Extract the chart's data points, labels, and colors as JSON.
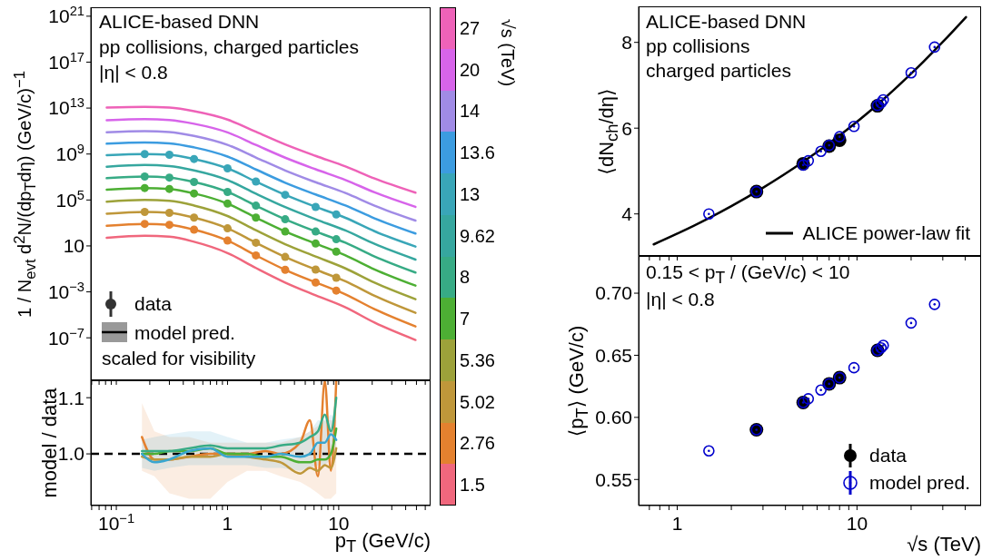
{
  "chart_data": [
    {
      "type": "line",
      "x": [
        0.082,
        0.18,
        0.3,
        0.5,
        1,
        1.8,
        3.3,
        6.2,
        11.5,
        21,
        49
      ],
      "log": "xy",
      "marker": "none",
      "xlim": [
        0.059,
        67
      ],
      "ylim": [
        2e-11,
        6e+21
      ],
      "xticks": [
        0.06,
        0.07,
        0.08,
        0.09,
        0.1,
        0.2,
        0.3,
        0.4,
        0.5,
        0.6,
        0.7,
        0.8,
        0.9,
        1,
        2,
        3,
        4,
        5,
        6,
        7,
        8,
        9,
        10,
        20,
        30,
        40,
        50,
        60
      ],
      "yticks": [
        {
          "value": 1e-07,
          "label": "10$^{−7}$"
        },
        {
          "value": 0.001,
          "label": "10$^{−3}$"
        },
        10,
        {
          "value": 100000.0,
          "label": "10$^{5}$"
        },
        {
          "value": 1000000000.0,
          "label": "10$^{9}$"
        },
        {
          "value": 10000000000000.0,
          "label": "10$^{13}$"
        },
        {
          "value": 1e+17,
          "label": "10$^{17}$"
        },
        {
          "value": 1e+21,
          "label": "10$^{21}$"
        }
      ],
      "tick_labels": "y",
      "ylabel": "1 / N$_{evt}$ d$^{2}$N/(dp$_{T}$dη) (GeV/c)$^{−1}$",
      "annotations": [
        "ALICE-based DNN",
        "pp collisions, charged particles",
        "|η| < 0.8",
        "data",
        "model pred.",
        "scaled for visibility"
      ],
      "legend": "right",
      "legend_title": "√s (TeV)",
      "series": [
        {
          "name": "1.5",
          "color": "#f0677d",
          "values": [
            50,
            76,
            63,
            23,
            2.4,
            0.12,
            0.0065,
            0.0005,
            4.5e-05,
            2.1e-06,
            6.5e-08
          ]
        },
        {
          "name": "2.76",
          "color": "#e4812f",
          "values": [
            560,
            830,
            690,
            260,
            29,
            1.5,
            0.083,
            0.0066,
            0.0006,
            3.1e-05,
            9.8e-07
          ]
        },
        {
          "name": "5.02",
          "color": "#bf973a",
          "values": [
            6300,
            9100,
            7600,
            2900,
            340,
            19,
            1.1,
            0.087,
            0.0083,
            0.00045,
            1.5e-05
          ]
        },
        {
          "name": "5.36",
          "color": "#9da23a",
          "values": [
            71000,
            100000,
            83000,
            33000,
            4000,
            230,
            14,
            1.2,
            0.11,
            0.0063,
            0.00023
          ]
        },
        {
          "name": "7",
          "color": "#4daf34",
          "values": [
            790000,
            1100000,
            910000,
            370000,
            48000,
            2900,
            180,
            16,
            1.5,
            0.091,
            0.0035
          ]
        },
        {
          "name": "8",
          "color": "#37ab85",
          "values": [
            7900000.0,
            11000000.0,
            8900000.0,
            3700000.0,
            500000.0,
            32000.0,
            2100,
            180,
            19,
            1.2,
            0.048
          ]
        },
        {
          "name": "9.62",
          "color": "#36a79f",
          "values": [
            79000000.0,
            110000000.0,
            89000000.0,
            37000000.0,
            5400000.0,
            350000.0,
            24000.0,
            2100,
            220,
            15,
            0.65
          ]
        },
        {
          "name": "13",
          "color": "#39a6b8",
          "values": [
            790000000.0,
            1000000000.0,
            870000000.0,
            370000000.0,
            56000000.0,
            4000000.0,
            280000.0,
            25000.0,
            2800,
            190,
            8.9
          ]
        },
        {
          "name": "13.6",
          "color": "#3c9ce0",
          "values": [
            7900000000.0,
            10000000000.0,
            8500000000.0,
            3800000000.0,
            600000000.0,
            45000000.0,
            3200000.0,
            300000.0,
            33000.0,
            2500,
            120
          ]
        },
        {
          "name": "14",
          "color": "#a08be6",
          "values": [
            79000000000.0,
            100000000000.0,
            83000000000.0,
            38000000000.0,
            6300000000.0,
            500000000.0,
            37000000.0,
            3500000.0,
            400000.0,
            32000.0,
            1600
          ]
        },
        {
          "name": "20",
          "color": "#d764ea",
          "values": [
            890000000000.0,
            1100000000000.0,
            910000000000.0,
            430000000000.0,
            76000000000.0,
            6200000000.0,
            480000000.0,
            47000000.0,
            5500000.0,
            460000.0,
            25000.0
          ]
        },
        {
          "name": "27",
          "color": "#ee62b8",
          "values": [
            11000000000000.0,
            13000000000000.0,
            11000000000000.0,
            5400000000000.0,
            1000000000000.0,
            87000000000.0,
            6900000000.0,
            690000000.0,
            83000000.0,
            7400000.0,
            430000.0
          ]
        },
        {
          "type": "scatter",
          "marker": "circle",
          "color": "#e4812f",
          "x": [
            0.18,
            0.3,
            0.5,
            1,
            1.8,
            3.3,
            6.2,
            9.5
          ],
          "values": [
            830,
            690,
            260,
            29,
            1.5,
            0.083,
            0.0066,
            0.0013
          ]
        },
        {
          "type": "scatter",
          "marker": "circle",
          "color": "#bf973a",
          "x": [
            0.18,
            0.3,
            0.5,
            1,
            1.8,
            3.3,
            6.2,
            9.5
          ],
          "values": [
            9100,
            7600,
            2900,
            340,
            19,
            1.1,
            0.087,
            0.017
          ]
        },
        {
          "type": "scatter",
          "marker": "circle",
          "color": "#4daf34",
          "x": [
            0.18,
            0.3,
            0.5,
            1,
            1.8,
            3.3,
            6.2,
            9.5
          ],
          "values": [
            1100000,
            910000,
            370000,
            48000,
            2900,
            180,
            16,
            3.2
          ]
        },
        {
          "type": "scatter",
          "marker": "circle",
          "color": "#37ab85",
          "x": [
            0.18,
            0.3,
            0.5,
            1,
            1.8,
            3.3,
            6.2,
            9.5
          ],
          "values": [
            11000000.0,
            8900000.0,
            3700000.0,
            500000.0,
            32000.0,
            2100,
            180,
            38
          ]
        },
        {
          "type": "scatter",
          "marker": "circle",
          "color": "#39a6b8",
          "x": [
            0.18,
            0.3,
            0.5,
            1,
            1.8,
            3.3,
            6.2,
            9.5
          ],
          "values": [
            1000000000.0,
            870000000.0,
            370000000.0,
            56000000.0,
            4000000.0,
            280000.0,
            25000.0,
            5500
          ]
        }
      ]
    },
    {
      "type": "line",
      "x": [
        0.17,
        0.22,
        0.3,
        0.45,
        0.7,
        1,
        1.5,
        2.2,
        3,
        4.5,
        5.5,
        6.5,
        7.5,
        8.5,
        9.5
      ],
      "log": "x",
      "xlim": [
        0.059,
        67
      ],
      "ylim": [
        0.908,
        1.131
      ],
      "xticks": [
        {
          "value": 0.06,
          "label": null
        },
        {
          "value": 0.07,
          "label": null
        },
        {
          "value": 0.08,
          "label": null
        },
        {
          "value": 0.09,
          "label": null
        },
        {
          "value": 0.1,
          "label": "10$^{−1}$"
        },
        {
          "value": 0.2,
          "label": null
        },
        {
          "value": 0.3,
          "label": null
        },
        {
          "value": 0.4,
          "label": null
        },
        {
          "value": 0.5,
          "label": null
        },
        {
          "value": 0.6,
          "label": null
        },
        {
          "value": 0.7,
          "label": null
        },
        {
          "value": 0.8,
          "label": null
        },
        {
          "value": 0.9,
          "label": null
        },
        1,
        {
          "value": 2,
          "label": null
        },
        {
          "value": 3,
          "label": null
        },
        {
          "value": 4,
          "label": null
        },
        {
          "value": 5,
          "label": null
        },
        {
          "value": 6,
          "label": null
        },
        {
          "value": 7,
          "label": null
        },
        {
          "value": 8,
          "label": null
        },
        {
          "value": 9,
          "label": null
        },
        10,
        {
          "value": 20,
          "label": null
        },
        {
          "value": 30,
          "label": null
        },
        {
          "value": 40,
          "label": null
        },
        {
          "value": 50,
          "label": null
        },
        {
          "value": 60,
          "label": null
        }
      ],
      "yticks": [
        {
          "value": 1,
          "label": "1.0"
        },
        1.1
      ],
      "xlabel": "p$_{T}$ (GeV/c)",
      "ylabel": "model / data",
      "ref_lines": [
        {
          "axis": "y",
          "value": 1,
          "color": "#000000",
          "line_style": "dashed"
        }
      ],
      "series": [
        {
          "color": "#e4812f",
          "values": [
            1.03,
            0.99,
            0.99,
            0.995,
            1.0,
            1.0,
            1.0,
            1.005,
            1.0,
            1.02,
            1.06,
            0.96,
            1.13,
            0.97,
            1.13
          ],
          "lower": [
            0.97,
            0.96,
            0.93,
            0.92,
            0.92,
            0.95,
            0.97,
            0.97,
            0.96,
            0.95,
            0.94,
            0.93,
            0.92,
            0.92,
            0.93
          ],
          "upper": [
            1.09,
            1.04,
            1.03,
            1.03,
            1.02,
            1.02,
            1.02,
            1.02,
            1.02,
            1.03,
            1.04,
            1.05,
            1.06,
            1.06,
            1.06
          ]
        },
        {
          "color": "#bf973a",
          "values": [
            0.995,
            0.99,
            0.99,
            0.995,
            0.995,
            1.0,
            0.995,
            0.99,
            0.985,
            0.965,
            0.975,
            0.97,
            0.98,
            0.975,
            1.01
          ]
        },
        {
          "color": "#4daf34",
          "values": [
            1.0,
            1.0,
            1.005,
            1.005,
            1.01,
            1.0,
            1.0,
            0.995,
            0.995,
            0.985,
            0.985,
            0.99,
            0.99,
            1.0,
            1.045
          ]
        },
        {
          "color": "#37ab85",
          "values": [
            1.005,
            1.005,
            1.005,
            1.01,
            1.015,
            1.01,
            1.01,
            1.01,
            1.015,
            1.02,
            1.03,
            1.04,
            1.07,
            1.04,
            1.1
          ]
        },
        {
          "color": "#39a6d0",
          "values": [
            1.0,
            0.985,
            0.99,
            1.005,
            1.01,
            0.995,
            0.995,
            0.995,
            1.0,
            0.995,
            1.0,
            1.02,
            1.02,
            1.035,
            1.025
          ],
          "lower": [
            0.975,
            0.97,
            0.975,
            0.98,
            0.98,
            0.98,
            0.98,
            0.975,
            0.975,
            0.97,
            0.975,
            0.98,
            0.98,
            0.99,
            0.99
          ],
          "upper": [
            1.025,
            1.03,
            1.035,
            1.04,
            1.04,
            1.03,
            1.02,
            1.02,
            1.025,
            1.03,
            1.04,
            1.06,
            1.06,
            1.07,
            1.06
          ]
        }
      ]
    },
    {
      "type": "scatter",
      "log": "x",
      "xlim": [
        0.61,
        49
      ],
      "ylim": [
        3.02,
        8.84
      ],
      "xticks": [
        0.7,
        0.8,
        0.9,
        1,
        2,
        3,
        4,
        5,
        6,
        7,
        8,
        9,
        10,
        20,
        30,
        40
      ],
      "yticks": [
        4,
        6,
        8
      ],
      "tick_labels": "y",
      "marker": "circle",
      "ylabel": "⟨dN$_{ch}$/dη⟩",
      "annotations": [
        "ALICE-based DNN",
        "pp collisions",
        "charged particles"
      ],
      "legend": "bottom right",
      "series": [
        {
          "color": "#000000",
          "x": [
            2.76,
            5.02,
            7,
            8,
            13
          ],
          "values": [
            4.52,
            5.17,
            5.58,
            5.72,
            6.52
          ]
        },
        {
          "color": "#0000cc",
          "x": [
            1.5,
            2.76,
            5.02,
            5.36,
            6.3,
            7,
            8,
            9.62,
            13,
            13.6,
            14,
            20,
            27
          ],
          "values": [
            4.0,
            4.52,
            5.14,
            5.24,
            5.46,
            5.6,
            5.8,
            6.04,
            6.53,
            6.59,
            6.66,
            7.29,
            7.89
          ]
        },
        {
          "type": "line",
          "marker": "none",
          "name": "ALICE power-law fit",
          "color": "#000000",
          "x": [
            0.74,
            1,
            1.5,
            2,
            3,
            5,
            8,
            13,
            20,
            30,
            40.4
          ],
          "values": [
            3.29,
            3.54,
            3.9,
            4.18,
            4.61,
            5.21,
            5.83,
            6.55,
            7.27,
            8.01,
            8.59
          ]
        }
      ]
    },
    {
      "type": "scatter",
      "log": "x",
      "xlim": [
        0.61,
        49
      ],
      "ylim": [
        0.529,
        0.73
      ],
      "xticks": [
        {
          "value": 0.7,
          "label": null
        },
        {
          "value": 0.8,
          "label": null
        },
        {
          "value": 0.9,
          "label": null
        },
        1,
        {
          "value": 2,
          "label": null
        },
        {
          "value": 3,
          "label": null
        },
        {
          "value": 4,
          "label": null
        },
        {
          "value": 5,
          "label": null
        },
        {
          "value": 6,
          "label": null
        },
        {
          "value": 7,
          "label": null
        },
        {
          "value": 8,
          "label": null
        },
        {
          "value": 9,
          "label": null
        },
        10,
        {
          "value": 20,
          "label": null
        },
        {
          "value": 30,
          "label": null
        },
        {
          "value": 40,
          "label": null
        }
      ],
      "yticks": [
        0.55,
        {
          "value": 0.6,
          "label": "0.60"
        },
        0.65,
        {
          "value": 0.7,
          "label": "0.70"
        }
      ],
      "marker": "circle",
      "xlabel": "√s (TeV)",
      "ylabel": "⟨p$_{T}$⟩ (GeV/c)",
      "annotations": [
        "0.15 < p$_{T}$ / (GeV/c) < 10",
        "|η| < 0.8"
      ],
      "legend": "bottom right",
      "series": [
        {
          "name": "data",
          "color": "#000000",
          "x": [
            2.76,
            5.02,
            7,
            8,
            13
          ],
          "values": [
            0.59,
            0.612,
            0.627,
            0.632,
            0.654
          ]
        },
        {
          "name": "model pred.",
          "color": "#0000cc",
          "x": [
            1.5,
            2.76,
            5.02,
            5.36,
            6.3,
            7,
            8,
            9.62,
            13,
            13.6,
            14,
            20,
            27
          ],
          "values": [
            0.573,
            0.59,
            0.612,
            0.615,
            0.622,
            0.627,
            0.632,
            0.64,
            0.654,
            0.656,
            0.658,
            0.676,
            0.691
          ]
        }
      ]
    }
  ]
}
